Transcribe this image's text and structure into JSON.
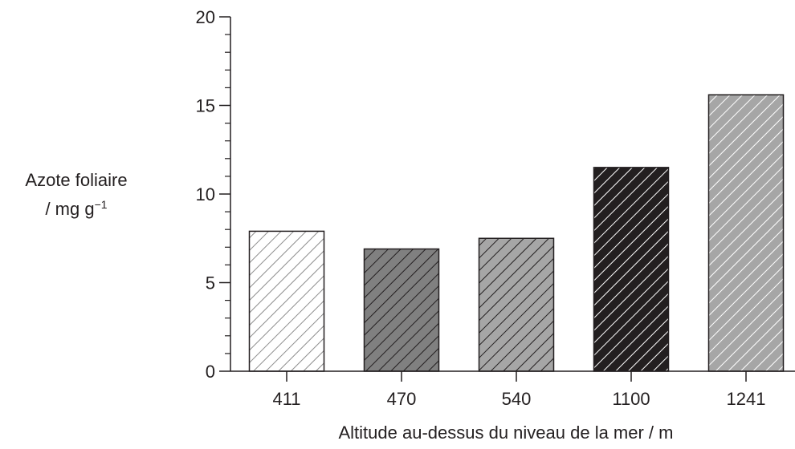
{
  "chart_data": {
    "type": "bar",
    "categories": [
      "411",
      "470",
      "540",
      "1100",
      "1241"
    ],
    "values": [
      7.9,
      6.9,
      7.5,
      11.5,
      15.6
    ],
    "xlabel": "Altitude au-dessus du niveau de la mer / m",
    "ylabel_line1": "Azote foliaire",
    "ylabel_line2": "/ mg g",
    "ylabel_exponent": "−1",
    "ylim": [
      0,
      20
    ],
    "yticks": [
      0,
      5,
      10,
      15,
      20
    ],
    "y_minor_step": 1,
    "grid": false,
    "legend": "none",
    "bar_fill_colors": [
      "#ffffff",
      "#808080",
      "#a6a6a6",
      "#231f20",
      "#a6a6a6"
    ],
    "hatch_colors": [
      "#8c8c8c",
      "#231f20",
      "#231f20",
      "#ffffff",
      "#ffffff"
    ],
    "axis_color": "#231f20"
  }
}
